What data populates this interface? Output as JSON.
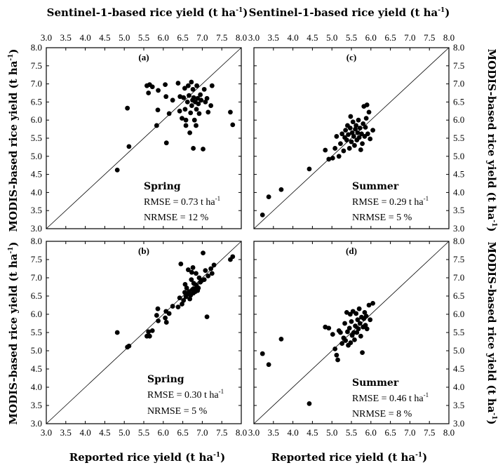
{
  "figure": {
    "top_xlabel": "Sentinel-1-based rice yield (t ha",
    "bottom_xlabel": "Reported rice yield (t ha",
    "ylabel": "MODIS-based rice yield (t ha",
    "unit_sup": "-1",
    "close_paren": ")"
  },
  "chart_data": [
    {
      "type": "scatter",
      "panel": "(a)",
      "season": "Spring",
      "rmse_text": "RMSE = 0.73 t ha",
      "nrmse_text": "NRMSE = 12 %",
      "xlim": [
        3.0,
        8.0
      ],
      "ylim": [
        3.0,
        8.0
      ],
      "x_ticks": [
        "3.0",
        "3.5",
        "4.0",
        "4.5",
        "5.0",
        "5.5",
        "6.0",
        "6.5",
        "7.0",
        "7.5",
        "8.0"
      ],
      "y_ticks": [
        "3.0",
        "3.5",
        "4.0",
        "4.5",
        "5.0",
        "5.5",
        "6.0",
        "6.5",
        "7.0",
        "7.5",
        "8.0"
      ],
      "one_to_one_line": true,
      "points": [
        [
          4.82,
          4.62
        ],
        [
          5.08,
          6.33
        ],
        [
          5.12,
          5.27
        ],
        [
          5.58,
          6.95
        ],
        [
          5.62,
          6.75
        ],
        [
          5.65,
          6.98
        ],
        [
          5.72,
          6.92
        ],
        [
          5.83,
          5.85
        ],
        [
          5.86,
          6.28
        ],
        [
          5.87,
          6.82
        ],
        [
          6.05,
          6.98
        ],
        [
          6.07,
          6.65
        ],
        [
          6.08,
          5.37
        ],
        [
          6.15,
          6.18
        ],
        [
          6.24,
          6.55
        ],
        [
          6.38,
          7.02
        ],
        [
          6.42,
          6.25
        ],
        [
          6.43,
          6.65
        ],
        [
          6.48,
          6.05
        ],
        [
          6.52,
          6.62
        ],
        [
          6.55,
          6.88
        ],
        [
          6.56,
          6.3
        ],
        [
          6.58,
          5.85
        ],
        [
          6.58,
          6.0
        ],
        [
          6.62,
          6.5
        ],
        [
          6.64,
          6.95
        ],
        [
          6.66,
          6.68
        ],
        [
          6.68,
          5.65
        ],
        [
          6.7,
          6.2
        ],
        [
          6.72,
          7.05
        ],
        [
          6.73,
          6.4
        ],
        [
          6.75,
          6.55
        ],
        [
          6.76,
          6.85
        ],
        [
          6.77,
          5.22
        ],
        [
          6.78,
          6.62
        ],
        [
          6.8,
          6.0
        ],
        [
          6.82,
          6.5
        ],
        [
          6.84,
          5.85
        ],
        [
          6.85,
          6.3
        ],
        [
          6.86,
          6.95
        ],
        [
          6.88,
          6.6
        ],
        [
          6.9,
          6.45
        ],
        [
          6.92,
          6.18
        ],
        [
          6.95,
          6.7
        ],
        [
          6.97,
          6.55
        ],
        [
          7.02,
          5.2
        ],
        [
          7.05,
          6.85
        ],
        [
          7.08,
          6.5
        ],
        [
          7.12,
          6.6
        ],
        [
          7.15,
          6.22
        ],
        [
          7.22,
          6.4
        ],
        [
          7.25,
          6.95
        ],
        [
          7.72,
          6.22
        ],
        [
          7.78,
          5.87
        ]
      ]
    },
    {
      "type": "scatter",
      "panel": "(c)",
      "season": "Summer",
      "rmse_text": "RMSE = 0.29 t ha",
      "nrmse_text": "NRMSE = 5 %",
      "xlim": [
        3.0,
        8.0
      ],
      "ylim": [
        3.0,
        8.0
      ],
      "x_ticks": [
        "3.0",
        "3.5",
        "4.0",
        "4.5",
        "5.0",
        "5.5",
        "6.0",
        "6.5",
        "7.0",
        "7.5",
        "8.0"
      ],
      "y_ticks": [
        "3.0",
        "3.5",
        "4.0",
        "4.5",
        "5.0",
        "5.5",
        "6.0",
        "6.5",
        "7.0",
        "7.5",
        "8.0"
      ],
      "one_to_one_line": true,
      "points": [
        [
          3.22,
          3.38
        ],
        [
          3.38,
          3.88
        ],
        [
          3.7,
          4.08
        ],
        [
          4.42,
          4.65
        ],
        [
          4.83,
          5.17
        ],
        [
          4.92,
          4.92
        ],
        [
          5.02,
          4.95
        ],
        [
          5.08,
          5.22
        ],
        [
          5.12,
          5.55
        ],
        [
          5.18,
          5.0
        ],
        [
          5.22,
          5.35
        ],
        [
          5.26,
          5.62
        ],
        [
          5.3,
          5.15
        ],
        [
          5.33,
          5.52
        ],
        [
          5.35,
          5.72
        ],
        [
          5.38,
          5.45
        ],
        [
          5.4,
          5.85
        ],
        [
          5.42,
          5.6
        ],
        [
          5.45,
          5.22
        ],
        [
          5.47,
          5.78
        ],
        [
          5.48,
          6.1
        ],
        [
          5.5,
          5.4
        ],
        [
          5.52,
          5.65
        ],
        [
          5.54,
          5.95
        ],
        [
          5.56,
          5.55
        ],
        [
          5.58,
          5.3
        ],
        [
          5.6,
          5.75
        ],
        [
          5.62,
          5.85
        ],
        [
          5.64,
          5.45
        ],
        [
          5.66,
          5.65
        ],
        [
          5.68,
          6.0
        ],
        [
          5.7,
          5.52
        ],
        [
          5.72,
          5.78
        ],
        [
          5.74,
          5.18
        ],
        [
          5.76,
          5.62
        ],
        [
          5.78,
          5.35
        ],
        [
          5.8,
          5.9
        ],
        [
          5.82,
          6.38
        ],
        [
          5.84,
          5.55
        ],
        [
          5.86,
          5.8
        ],
        [
          5.88,
          6.05
        ],
        [
          5.9,
          6.42
        ],
        [
          5.92,
          5.62
        ],
        [
          5.95,
          6.22
        ],
        [
          5.98,
          5.48
        ],
        [
          6.05,
          5.72
        ]
      ]
    },
    {
      "type": "scatter",
      "panel": "(b)",
      "season": "Spring",
      "rmse_text": "RMSE = 0.30 t ha",
      "nrmse_text": "NRMSE = 5 %",
      "xlim": [
        3.0,
        8.0
      ],
      "ylim": [
        3.0,
        8.0
      ],
      "x_ticks": [
        "3.0",
        "3.5",
        "4.0",
        "4.5",
        "5.0",
        "5.5",
        "6.0",
        "6.5",
        "7.0",
        "7.5",
        "8.0"
      ],
      "y_ticks": [
        "3.0",
        "3.5",
        "4.0",
        "4.5",
        "5.0",
        "5.5",
        "6.0",
        "6.5",
        "7.0",
        "7.5",
        "8.0"
      ],
      "one_to_one_line": true,
      "points": [
        [
          4.82,
          5.5
        ],
        [
          5.08,
          5.1
        ],
        [
          5.12,
          5.13
        ],
        [
          5.58,
          5.4
        ],
        [
          5.62,
          5.52
        ],
        [
          5.65,
          5.4
        ],
        [
          5.72,
          5.55
        ],
        [
          5.83,
          5.97
        ],
        [
          5.86,
          6.15
        ],
        [
          5.87,
          5.82
        ],
        [
          6.05,
          5.9
        ],
        [
          6.07,
          6.08
        ],
        [
          6.08,
          5.78
        ],
        [
          6.15,
          6.02
        ],
        [
          6.24,
          6.22
        ],
        [
          6.38,
          6.2
        ],
        [
          6.42,
          6.45
        ],
        [
          6.45,
          7.38
        ],
        [
          6.48,
          6.28
        ],
        [
          6.52,
          6.38
        ],
        [
          6.55,
          6.6
        ],
        [
          6.56,
          6.82
        ],
        [
          6.58,
          6.48
        ],
        [
          6.6,
          6.72
        ],
        [
          6.62,
          6.55
        ],
        [
          6.64,
          7.22
        ],
        [
          6.66,
          6.62
        ],
        [
          6.68,
          6.42
        ],
        [
          6.7,
          6.52
        ],
        [
          6.72,
          6.95
        ],
        [
          6.73,
          7.15
        ],
        [
          6.75,
          6.68
        ],
        [
          6.76,
          7.28
        ],
        [
          6.77,
          6.58
        ],
        [
          6.78,
          6.85
        ],
        [
          6.8,
          6.7
        ],
        [
          6.82,
          6.62
        ],
        [
          6.84,
          7.12
        ],
        [
          6.85,
          6.8
        ],
        [
          6.88,
          6.65
        ],
        [
          6.9,
          6.72
        ],
        [
          6.92,
          7.0
        ],
        [
          6.95,
          6.88
        ],
        [
          6.98,
          6.92
        ],
        [
          7.02,
          7.68
        ],
        [
          7.05,
          6.95
        ],
        [
          7.08,
          7.2
        ],
        [
          7.12,
          5.93
        ],
        [
          7.15,
          7.05
        ],
        [
          7.22,
          7.25
        ],
        [
          7.25,
          7.12
        ],
        [
          7.3,
          7.35
        ],
        [
          7.72,
          7.5
        ],
        [
          7.78,
          7.58
        ]
      ]
    },
    {
      "type": "scatter",
      "panel": "(d)",
      "season": "Summer",
      "rmse_text": "RMSE = 0.46 t ha",
      "nrmse_text": "NRMSE = 8 %",
      "xlim": [
        3.0,
        8.0
      ],
      "ylim": [
        3.0,
        8.0
      ],
      "x_ticks": [
        "3.0",
        "3.5",
        "4.0",
        "4.5",
        "5.0",
        "5.5",
        "6.0",
        "6.5",
        "7.0",
        "7.5",
        "8.0"
      ],
      "y_ticks": [
        "3.0",
        "3.5",
        "4.0",
        "4.5",
        "5.0",
        "5.5",
        "6.0",
        "6.5",
        "7.0",
        "7.5",
        "8.0"
      ],
      "one_to_one_line": true,
      "points": [
        [
          3.22,
          4.92
        ],
        [
          3.38,
          4.62
        ],
        [
          3.7,
          5.32
        ],
        [
          4.42,
          3.55
        ],
        [
          4.83,
          5.65
        ],
        [
          4.92,
          5.62
        ],
        [
          5.02,
          5.45
        ],
        [
          5.08,
          5.05
        ],
        [
          5.12,
          4.88
        ],
        [
          5.15,
          4.75
        ],
        [
          5.18,
          5.55
        ],
        [
          5.22,
          5.5
        ],
        [
          5.26,
          5.2
        ],
        [
          5.3,
          5.35
        ],
        [
          5.33,
          5.75
        ],
        [
          5.35,
          5.28
        ],
        [
          5.38,
          6.05
        ],
        [
          5.4,
          5.52
        ],
        [
          5.42,
          5.15
        ],
        [
          5.45,
          5.62
        ],
        [
          5.47,
          6.0
        ],
        [
          5.48,
          5.22
        ],
        [
          5.5,
          5.8
        ],
        [
          5.52,
          5.42
        ],
        [
          5.54,
          6.08
        ],
        [
          5.56,
          5.5
        ],
        [
          5.58,
          5.3
        ],
        [
          5.6,
          5.68
        ],
        [
          5.62,
          6.02
        ],
        [
          5.64,
          5.5
        ],
        [
          5.66,
          5.85
        ],
        [
          5.68,
          5.6
        ],
        [
          5.7,
          6.15
        ],
        [
          5.72,
          5.75
        ],
        [
          5.74,
          5.4
        ],
        [
          5.76,
          5.92
        ],
        [
          5.78,
          4.95
        ],
        [
          5.8,
          5.65
        ],
        [
          5.82,
          5.88
        ],
        [
          5.84,
          6.05
        ],
        [
          5.86,
          5.7
        ],
        [
          5.88,
          5.95
        ],
        [
          5.9,
          5.6
        ],
        [
          5.95,
          6.25
        ],
        [
          5.98,
          5.85
        ],
        [
          6.05,
          6.3
        ]
      ]
    }
  ]
}
